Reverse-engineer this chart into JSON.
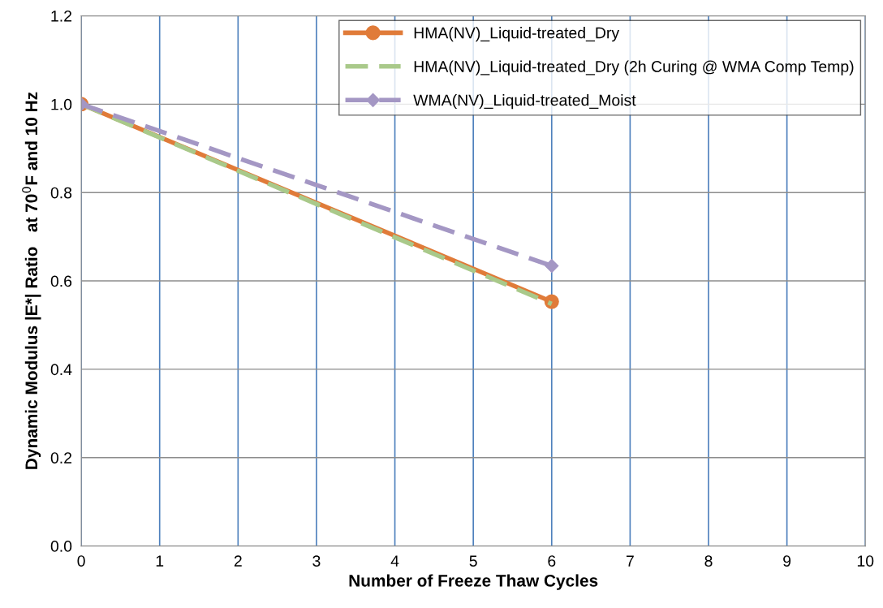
{
  "chart_data": {
    "type": "line",
    "xlabel": "Number of Freeze Thaw Cycles",
    "ylabel": "Dynamic Modulus |E*| Ratio   at 70$^{0}$F and 10 Hz",
    "x": [
      0,
      6
    ],
    "series": [
      {
        "name": "HMA(NV)_Liquid-treated_Dry",
        "color": "#e07b39",
        "values": [
          1.0,
          0.553
        ],
        "marker": "circle",
        "line_style": "solid"
      },
      {
        "name": "HMA(NV)_Liquid-treated_Dry (2h Curing @ WMA Comp Temp)",
        "color": "#a9c98a",
        "values": [
          1.0,
          0.548
        ],
        "marker": "none",
        "line_style": "dashed"
      },
      {
        "name": "WMA(NV)_Liquid-treated_Moist",
        "color": "#a497c4",
        "values": [
          1.0,
          0.634
        ],
        "marker": "diamond",
        "line_style": "dashed"
      }
    ],
    "xlim": [
      0,
      10
    ],
    "xticks": [
      0,
      1,
      2,
      3,
      4,
      5,
      6,
      7,
      8,
      9,
      10
    ],
    "ylim": [
      0.0,
      1.2
    ],
    "yticks": [
      {
        "value": 0,
        "label": "0.0"
      },
      {
        "value": 0.2,
        "label": "0.2"
      },
      {
        "value": 0.4,
        "label": "0.4"
      },
      {
        "value": 0.6,
        "label": "0.6"
      },
      {
        "value": 0.8,
        "label": "0.8"
      },
      {
        "value": 1.0,
        "label": "1.0"
      },
      {
        "value": 1.2,
        "label": "1.2"
      }
    ],
    "grid": true,
    "legend": "top right"
  }
}
